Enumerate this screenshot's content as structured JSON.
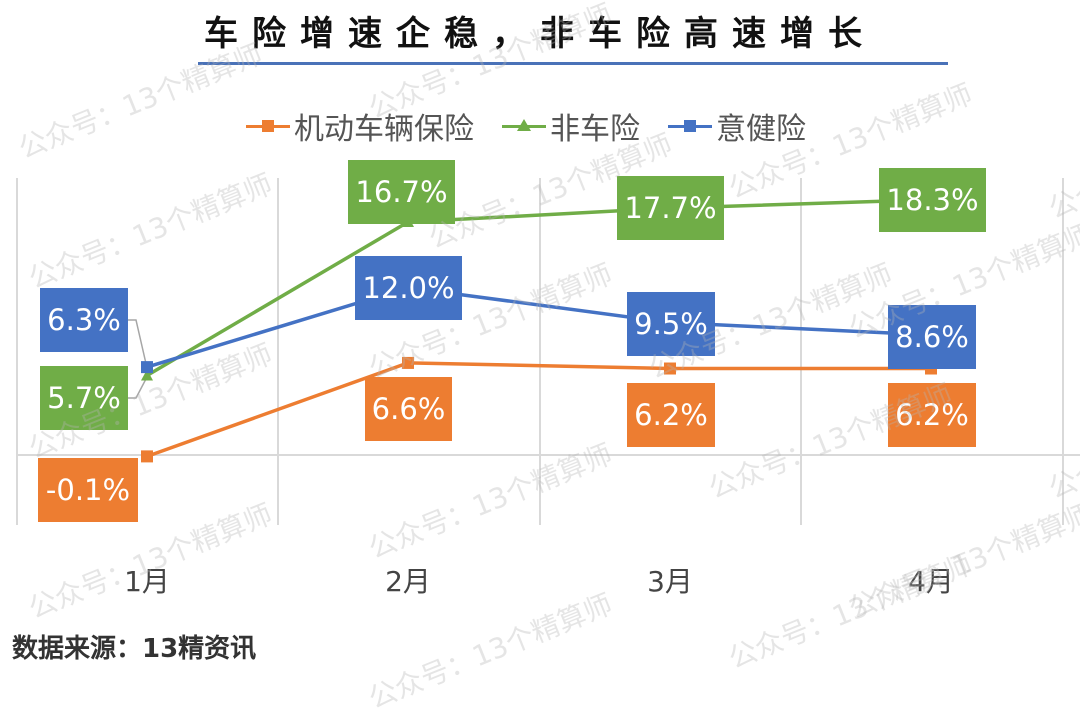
{
  "title": "车险增速企稳，非车险高速增长",
  "legend": [
    {
      "name": "机动车辆保险",
      "color": "#ed7d31",
      "marker": "square"
    },
    {
      "name": "非车险",
      "color": "#70ad47",
      "marker": "triangle"
    },
    {
      "name": "意健险",
      "color": "#4472c4",
      "marker": "square"
    }
  ],
  "x_axis": {
    "ticks": [
      "1月",
      "2月",
      "3月",
      "4月"
    ]
  },
  "source": "数据来源：13精资讯",
  "watermark": "公众号：13个精算师",
  "labels": {
    "auto": [
      "-0.1%",
      "6.6%",
      "6.2%",
      "6.2%"
    ],
    "nonauto": [
      "5.7%",
      "16.7%",
      "17.7%",
      "18.3%"
    ],
    "health": [
      "6.3%",
      "12.0%",
      "9.5%",
      "8.6%"
    ]
  },
  "chart_data": {
    "type": "line",
    "title": "车险增速企稳，非车险高速增长",
    "categories": [
      "1月",
      "2月",
      "3月",
      "4月"
    ],
    "series": [
      {
        "name": "机动车辆保险",
        "color": "#ed7d31",
        "values": [
          -0.1,
          6.6,
          6.2,
          6.2
        ]
      },
      {
        "name": "非车险",
        "color": "#70ad47",
        "values": [
          5.7,
          16.7,
          17.7,
          18.3
        ]
      },
      {
        "name": "意健险",
        "color": "#4472c4",
        "values": [
          6.3,
          12.0,
          9.5,
          8.6
        ]
      }
    ],
    "xlabel": "",
    "ylabel": "",
    "value_format": "percent",
    "legend_position": "top",
    "grid": {
      "vertical": true,
      "zero_line": true
    },
    "annotations": [
      "数据来源：13精资讯"
    ]
  }
}
